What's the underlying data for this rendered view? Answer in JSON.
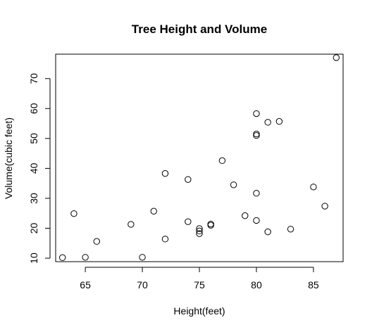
{
  "chart_data": {
    "type": "scatter",
    "title": "Tree Height and Volume",
    "xlabel": "Height(feet)",
    "ylabel": "Volume(cubic feet)",
    "xlim": [
      62.4,
      87.6
    ],
    "ylim": [
      8.84,
      78.16
    ],
    "xticks": [
      65,
      70,
      75,
      80,
      85
    ],
    "yticks": [
      10,
      20,
      30,
      40,
      50,
      60,
      70
    ],
    "grid": false,
    "legend": "none",
    "points": [
      {
        "x": 70,
        "y": 10.3
      },
      {
        "x": 65,
        "y": 10.3
      },
      {
        "x": 63,
        "y": 10.2
      },
      {
        "x": 72,
        "y": 16.4
      },
      {
        "x": 81,
        "y": 18.8
      },
      {
        "x": 83,
        "y": 19.7
      },
      {
        "x": 66,
        "y": 15.6
      },
      {
        "x": 75,
        "y": 18.2
      },
      {
        "x": 80,
        "y": 22.6
      },
      {
        "x": 75,
        "y": 19.9
      },
      {
        "x": 79,
        "y": 24.2
      },
      {
        "x": 76,
        "y": 21.0
      },
      {
        "x": 76,
        "y": 21.4
      },
      {
        "x": 69,
        "y": 21.3
      },
      {
        "x": 75,
        "y": 19.1
      },
      {
        "x": 74,
        "y": 22.2
      },
      {
        "x": 85,
        "y": 33.8
      },
      {
        "x": 86,
        "y": 27.4
      },
      {
        "x": 71,
        "y": 25.7
      },
      {
        "x": 64,
        "y": 24.9
      },
      {
        "x": 78,
        "y": 34.5
      },
      {
        "x": 80,
        "y": 31.7
      },
      {
        "x": 74,
        "y": 36.3
      },
      {
        "x": 72,
        "y": 38.3
      },
      {
        "x": 77,
        "y": 42.6
      },
      {
        "x": 81,
        "y": 55.4
      },
      {
        "x": 82,
        "y": 55.7
      },
      {
        "x": 80,
        "y": 58.3
      },
      {
        "x": 80,
        "y": 51.5
      },
      {
        "x": 80,
        "y": 51.0
      },
      {
        "x": 87,
        "y": 77.0
      }
    ]
  }
}
